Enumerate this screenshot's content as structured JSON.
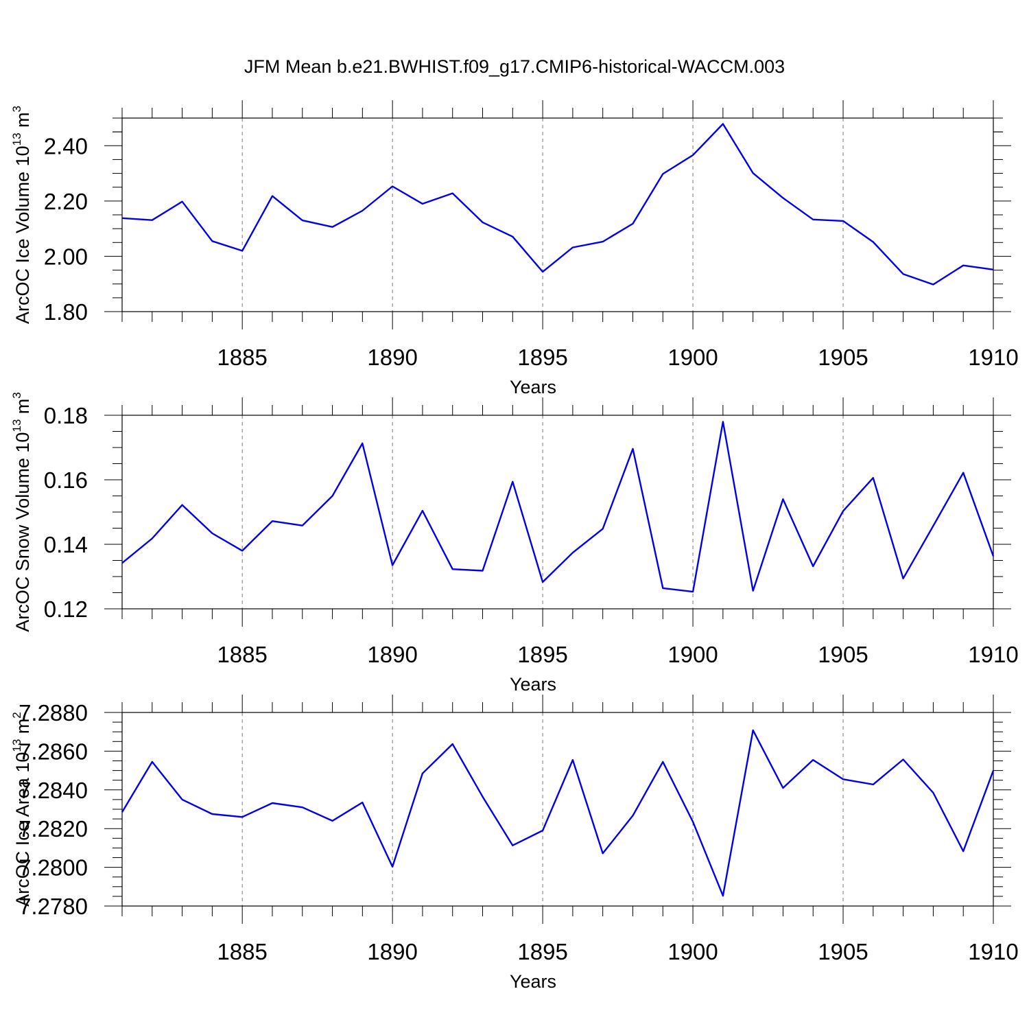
{
  "figure": {
    "title": "JFM Mean b.e21.BWHIST.f09_g17.CMIP6-historical-WACCM.003"
  },
  "chart_data": [
    {
      "type": "line",
      "xlabel": "Years",
      "ylabel": "ArcOC Ice Volume 10",
      "ylabel_exp": "13",
      "ylabel_unit": "m",
      "ylabel_unit_exp": "3",
      "xlim": [
        1881,
        1910
      ],
      "ylim": [
        1.8,
        2.5
      ],
      "xticks": [
        1885,
        1890,
        1895,
        1900,
        1905,
        1910
      ],
      "yticks": [
        1.8,
        2.0,
        2.2,
        2.4
      ],
      "ytick_labels": [
        "1.80",
        "2.00",
        "2.20",
        "2.40"
      ],
      "line_color": "#0000ee",
      "x": [
        1881,
        1882,
        1883,
        1884,
        1885,
        1886,
        1887,
        1888,
        1889,
        1890,
        1891,
        1892,
        1893,
        1894,
        1895,
        1896,
        1897,
        1898,
        1899,
        1900,
        1901,
        1902,
        1903,
        1904,
        1905,
        1906,
        1907,
        1908,
        1909,
        1910
      ],
      "y": [
        2.138,
        2.131,
        2.198,
        2.055,
        2.02,
        2.218,
        2.13,
        2.106,
        2.165,
        2.253,
        2.19,
        2.228,
        2.123,
        2.071,
        1.944,
        2.032,
        2.053,
        2.118,
        2.298,
        2.366,
        2.479,
        2.301,
        2.211,
        2.133,
        2.128,
        2.052,
        1.936,
        1.898,
        1.967,
        1.952
      ]
    },
    {
      "type": "line",
      "xlabel": "Years",
      "ylabel": "ArcOC Snow Volume 10",
      "ylabel_exp": "13",
      "ylabel_unit": "m",
      "ylabel_unit_exp": "3",
      "xlim": [
        1881,
        1910
      ],
      "ylim": [
        0.12,
        0.18
      ],
      "xticks": [
        1885,
        1890,
        1895,
        1900,
        1905,
        1910
      ],
      "yticks": [
        0.12,
        0.14,
        0.16,
        0.18
      ],
      "ytick_labels": [
        "0.12",
        "0.14",
        "0.16",
        "0.18"
      ],
      "line_color": "#0000ee",
      "x": [
        1881,
        1882,
        1883,
        1884,
        1885,
        1886,
        1887,
        1888,
        1889,
        1890,
        1891,
        1892,
        1893,
        1894,
        1895,
        1896,
        1897,
        1898,
        1899,
        1900,
        1901,
        1902,
        1903,
        1904,
        1905,
        1906,
        1907,
        1908,
        1909,
        1910
      ],
      "y": [
        0.1342,
        0.1418,
        0.1522,
        0.1434,
        0.138,
        0.1472,
        0.1458,
        0.155,
        0.1713,
        0.1335,
        0.1504,
        0.1323,
        0.1318,
        0.1594,
        0.1283,
        0.1374,
        0.1448,
        0.1696,
        0.1264,
        0.1253,
        0.178,
        0.1256,
        0.154,
        0.1332,
        0.1503,
        0.1606,
        0.1294,
        0.1457,
        0.1622,
        0.1363
      ]
    },
    {
      "type": "line",
      "xlabel": "Years",
      "ylabel": "ArcOC Ice Area 10",
      "ylabel_exp": "13",
      "ylabel_unit": "m",
      "ylabel_unit_exp": "2",
      "xlim": [
        1881,
        1910
      ],
      "ylim": [
        7.278,
        7.288
      ],
      "xticks": [
        1885,
        1890,
        1895,
        1900,
        1905,
        1910
      ],
      "yticks": [
        7.278,
        7.28,
        7.282,
        7.284,
        7.286,
        7.288
      ],
      "ytick_labels": [
        "7.2780",
        "7.2800",
        "7.2820",
        "7.2840",
        "7.2860",
        "7.2880"
      ],
      "line_color": "#0000ee",
      "x": [
        1881,
        1882,
        1883,
        1884,
        1885,
        1886,
        1887,
        1888,
        1889,
        1890,
        1891,
        1892,
        1893,
        1894,
        1895,
        1896,
        1897,
        1898,
        1899,
        1900,
        1901,
        1902,
        1903,
        1904,
        1905,
        1906,
        1907,
        1908,
        1909,
        1910
      ],
      "y": [
        7.28285,
        7.28545,
        7.2835,
        7.28275,
        7.2826,
        7.28332,
        7.2831,
        7.2824,
        7.28335,
        7.28003,
        7.28485,
        7.28637,
        7.28365,
        7.28113,
        7.2819,
        7.28555,
        7.28072,
        7.28267,
        7.28545,
        7.28235,
        7.27853,
        7.28708,
        7.2841,
        7.28555,
        7.28455,
        7.28428,
        7.28557,
        7.28385,
        7.28083,
        7.285
      ]
    }
  ]
}
